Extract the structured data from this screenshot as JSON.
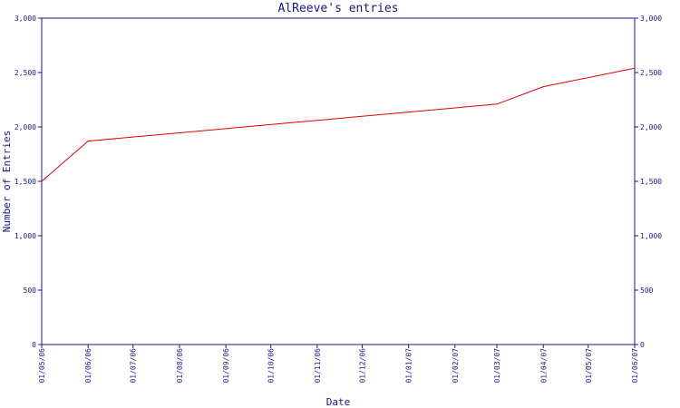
{
  "chart_data": {
    "type": "line",
    "title": "AlReeve's entries",
    "xlabel": "Date",
    "ylabel": "Number of Entries",
    "ylim": [
      0,
      3000
    ],
    "y_ticks": [
      "0",
      "500",
      "1,000",
      "1,500",
      "2,000",
      "2,500",
      "3,000"
    ],
    "y_tick_values": [
      0,
      500,
      1000,
      1500,
      2000,
      2500,
      3000
    ],
    "x_ticks": [
      "01/05/06",
      "01/06/06",
      "01/07/06",
      "01/08/06",
      "01/09/06",
      "01/10/06",
      "01/11/06",
      "01/12/06",
      "01/01/07",
      "01/02/07",
      "01/03/07",
      "01/04/07",
      "01/05/07",
      "01/06/07"
    ],
    "x_range": [
      "01/05/06",
      "01/06/07"
    ],
    "grid": false,
    "series": [
      {
        "color": "#e00000",
        "x": [
          "01/05/06",
          "01/06/06",
          "01/03/07",
          "01/04/07",
          "01/06/07"
        ],
        "y": [
          1500,
          1870,
          2210,
          2370,
          2540
        ]
      }
    ]
  }
}
